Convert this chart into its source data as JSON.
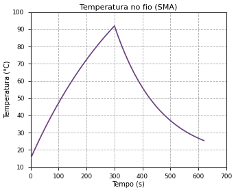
{
  "title": "Temperatura no fio (SMA)",
  "xlabel": "Tempo (s)",
  "ylabel": "Temperatura (°C)",
  "xlim": [
    0,
    700
  ],
  "ylim": [
    10,
    100
  ],
  "xticks": [
    0,
    100,
    200,
    300,
    400,
    500,
    600,
    700
  ],
  "yticks": [
    10,
    20,
    30,
    40,
    50,
    60,
    70,
    80,
    90,
    100
  ],
  "T_ambient": 15.0,
  "T_peak": 92.0,
  "t_peak": 300,
  "t_start": 0,
  "t_end": 620,
  "tau_rise": 400,
  "tau_fall": 160,
  "line_color1": "#7f3f6f",
  "line_color2": "#5050a0",
  "background_color": "#ffffff",
  "grid_color": "#aaaaaa",
  "grid_linestyle": "--",
  "title_fontsize": 8,
  "label_fontsize": 7,
  "tick_fontsize": 6.5
}
